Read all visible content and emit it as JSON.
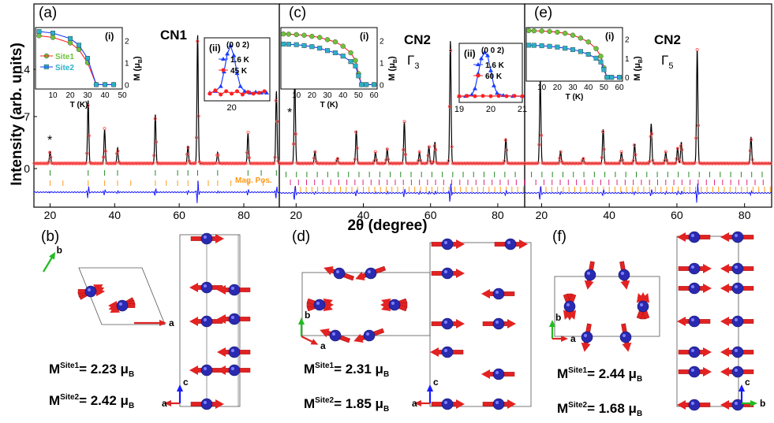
{
  "figure": {
    "ylabel": "Intensity (arb. units)",
    "xlabel": "2θ (degree)",
    "y_ticks": [
      "0",
      "7",
      "14"
    ]
  },
  "colors": {
    "obs": "#ff4d4d",
    "calc": "#000000",
    "diff": "#1a1aff",
    "nuc_ticks": "#228b22",
    "mag_ticks_1": "#e0218a",
    "mag_ticks_2": "#ff9a1a",
    "site1": "#6fc23a",
    "site2": "#2bb0c8",
    "arrow": "#e32222",
    "atom": "#2a2ab0"
  },
  "panels": {
    "a": {
      "label": "(a)",
      "sample": "CN1",
      "irrep": "",
      "mag_pos": "Mag. Pos.",
      "inset_i": "(i)",
      "inset_ii": "(ii)",
      "inset_ii_title": "(0 0 2)",
      "leg_site1": "Site1",
      "leg_site2": "Site2",
      "leg_t1": "1.6 K",
      "leg_t2": "45 K",
      "ylab_i": "M (μ",
      "ylab_i_sub": "B",
      "ylab_close": ")",
      "xlab_i": "T (K)",
      "star": "*"
    },
    "c": {
      "label": "(c)",
      "sample": "CN2",
      "irrep": "Γ",
      "irrep_sub": "3",
      "inset_i": "(i)",
      "inset_ii": "(ii)",
      "inset_ii_title": "(0 0 2)",
      "leg_t1": "1.6 K",
      "leg_t2": "60 K",
      "ylab_i": "M (μ",
      "ylab_i_sub": "B",
      "ylab_close": ")",
      "xlab_i": "T (K)",
      "star": "*"
    },
    "e": {
      "label": "(e)",
      "sample": "CN2",
      "irrep": "Γ",
      "irrep_sub": "5",
      "inset_i": "(i)",
      "ylab_i": "M (μ",
      "ylab_i_sub": "B",
      "ylab_close": ")",
      "xlab_i": "T (K)"
    },
    "b": {
      "label": "(b)",
      "m1": "2.23",
      "m2": "2.42"
    },
    "d": {
      "label": "(d)",
      "m1": "2.31",
      "m2": "1.85"
    },
    "f": {
      "label": "(f)",
      "m1": "2.44",
      "m2": "1.68"
    }
  },
  "moment_text": {
    "m": "M",
    "site1": "Site1",
    "site2": "Site2",
    "eq": "= ",
    "unit": "μ",
    "unit_sub": "B"
  },
  "axes_labels": {
    "a": "a",
    "b": "b",
    "c": "c"
  },
  "chart_data": [
    {
      "type": "line",
      "panel": "a",
      "title": "CN1",
      "xlabel": "2θ (degree)",
      "ylabel": "Intensity (arb. units)",
      "xlim": [
        15,
        91
      ],
      "ylim": [
        -3.5,
        21
      ],
      "x_ticks": [
        20,
        40,
        60,
        80
      ],
      "y_ticks": [
        0,
        7,
        14
      ],
      "peaks": [
        [
          20,
          1.6
        ],
        [
          31.8,
          8.5
        ],
        [
          36.9,
          4.6
        ],
        [
          40.9,
          2.1
        ],
        [
          52.6,
          6.6
        ],
        [
          62.7,
          2.4
        ],
        [
          65.7,
          17.4
        ],
        [
          71.9,
          1.5
        ],
        [
          81.3,
          4.1
        ],
        [
          90.1,
          9.8
        ]
      ],
      "background": 0.7,
      "nuclear_tick_positions": [
        20,
        31.8,
        36.9,
        40.9,
        52.6,
        59.5,
        62.7,
        65.7,
        71.9,
        81.3,
        85.4,
        90.1
      ],
      "magnetic_tick_positions": [
        20,
        24,
        31.8,
        36.9,
        40.9,
        45,
        52.6,
        56,
        59.5,
        62.7,
        65.7,
        69,
        71.9,
        76,
        81.3,
        86
      ]
    },
    {
      "type": "line",
      "panel": "c",
      "title": "CN2",
      "xlim": [
        15,
        88
      ],
      "x_ticks": [
        20,
        40,
        60,
        80
      ],
      "peaks": [
        [
          19.6,
          12
        ],
        [
          25.6,
          1.6
        ],
        [
          32.3,
          0.7
        ],
        [
          37.9,
          4.4
        ],
        [
          43.6,
          1.5
        ],
        [
          47.1,
          1.9
        ],
        [
          52.2,
          5.6
        ],
        [
          56.7,
          1.5
        ],
        [
          59.5,
          2.3
        ],
        [
          61.3,
          2.9
        ],
        [
          65.9,
          16.6
        ],
        [
          82.4,
          3.4
        ]
      ],
      "background": 0.7
    },
    {
      "type": "line",
      "panel": "e",
      "title": "CN2",
      "xlim": [
        15,
        88
      ],
      "x_ticks": [
        20,
        40,
        60,
        80
      ],
      "peaks": [
        [
          19.6,
          11.5
        ],
        [
          25.6,
          1.6
        ],
        [
          32.3,
          0.7
        ],
        [
          38.2,
          4.6
        ],
        [
          43.6,
          1.5
        ],
        [
          47.5,
          2.6
        ],
        [
          52.4,
          5.4
        ],
        [
          56.7,
          1.5
        ],
        [
          60.2,
          2.1
        ],
        [
          61.3,
          2.9
        ],
        [
          66,
          15.5
        ],
        [
          81.9,
          3.6
        ]
      ],
      "background": 0.7
    },
    {
      "type": "line",
      "panel": "a-i",
      "xlabel": "T (K)",
      "xlim": [
        0,
        50
      ],
      "ylim": [
        -0.2,
        2.6
      ],
      "x_ticks": [
        10,
        20,
        30,
        40,
        50
      ],
      "y_ticks": [
        0,
        1,
        2
      ],
      "series": [
        {
          "name": "Site1",
          "x": [
            2,
            10,
            20,
            25,
            30,
            35,
            40,
            45
          ],
          "y": [
            2.23,
            2.15,
            1.9,
            1.6,
            1.0,
            0,
            0,
            0
          ]
        },
        {
          "name": "Site2",
          "x": [
            2,
            10,
            20,
            25,
            30,
            35,
            40,
            45
          ],
          "y": [
            2.42,
            2.35,
            2.1,
            1.8,
            1.2,
            0,
            0,
            0
          ]
        }
      ]
    },
    {
      "type": "line",
      "panel": "a-ii",
      "title": "(0 0 2)",
      "xlim": [
        17.5,
        23.5
      ],
      "x_ticks": [
        20
      ],
      "series": [
        {
          "name": "1.6 K",
          "x": [
            18,
            18.5,
            19,
            19.3,
            19.6,
            19.9,
            20.2,
            20.5,
            20.8,
            21.2,
            21.7,
            22.2,
            22.7,
            23.2
          ],
          "y": [
            0.2,
            0.3,
            0.6,
            1.5,
            2.6,
            3.1,
            2.5,
            1.4,
            0.6,
            0.3,
            0.2,
            0.25,
            0.2,
            0.2
          ]
        },
        {
          "name": "45 K",
          "x": [
            18,
            18.5,
            19,
            19.5,
            20,
            20.5,
            21,
            21.5,
            22,
            22.5,
            23
          ],
          "y": [
            0.15,
            0.35,
            0.1,
            0.3,
            0.15,
            0.3,
            0.1,
            0.25,
            0.15,
            0.2,
            0.3
          ]
        }
      ]
    },
    {
      "type": "line",
      "panel": "c-i",
      "xlabel": "T (K)",
      "xlim": [
        0,
        62
      ],
      "ylim": [
        -0.2,
        2.6
      ],
      "x_ticks": [
        10,
        20,
        30,
        40,
        50,
        60
      ],
      "y_ticks": [
        0,
        1,
        2
      ],
      "series": [
        {
          "name": "Site1",
          "x": [
            1.6,
            5,
            10,
            15,
            20,
            25,
            30,
            35,
            40,
            45,
            48,
            50,
            52,
            55,
            60
          ],
          "y": [
            2.31,
            2.3,
            2.28,
            2.25,
            2.2,
            2.15,
            2.05,
            1.95,
            1.75,
            1.45,
            1.1,
            0.5,
            0,
            0,
            0
          ]
        },
        {
          "name": "Site2",
          "x": [
            1.6,
            5,
            10,
            15,
            20,
            25,
            30,
            35,
            40,
            45,
            48,
            50,
            52,
            55,
            60
          ],
          "y": [
            1.85,
            1.84,
            1.82,
            1.78,
            1.73,
            1.66,
            1.55,
            1.45,
            1.3,
            1.05,
            0.85,
            0.4,
            0,
            0,
            0
          ]
        }
      ]
    },
    {
      "type": "line",
      "panel": "c-ii",
      "title": "(0 0 2)",
      "xlim": [
        19,
        21
      ],
      "x_ticks": [
        19,
        20,
        21
      ],
      "series": [
        {
          "name": "1.6 K",
          "x": [
            19.0,
            19.2,
            19.4,
            19.5,
            19.6,
            19.7,
            19.8,
            19.9,
            20.0,
            20.1,
            20.2,
            20.4,
            20.7,
            21.0
          ],
          "y": [
            0.1,
            0.1,
            0.2,
            0.6,
            1.6,
            2.6,
            3.0,
            2.8,
            1.8,
            0.8,
            0.3,
            0.15,
            0.1,
            0.1
          ]
        },
        {
          "name": "60 K",
          "x": [
            19.0,
            19.25,
            19.5,
            19.75,
            20.0,
            20.25,
            20.5,
            20.75,
            21.0
          ],
          "y": [
            0.1,
            0.12,
            0.1,
            0.12,
            0.1,
            0.12,
            0.1,
            0.12,
            0.1
          ]
        }
      ]
    },
    {
      "type": "line",
      "panel": "e-i",
      "xlabel": "T (K)",
      "xlim": [
        0,
        62
      ],
      "ylim": [
        -0.2,
        2.6
      ],
      "x_ticks": [
        10,
        20,
        30,
        40,
        50,
        60
      ],
      "y_ticks": [
        0,
        1,
        2
      ],
      "series": [
        {
          "name": "Site1",
          "x": [
            1.6,
            5,
            10,
            15,
            20,
            25,
            30,
            35,
            40,
            45,
            48,
            50,
            52,
            55,
            60
          ],
          "y": [
            2.44,
            2.43,
            2.42,
            2.4,
            2.36,
            2.3,
            2.2,
            2.05,
            1.85,
            1.5,
            1.1,
            0.5,
            0,
            0,
            0
          ]
        },
        {
          "name": "Site2",
          "x": [
            1.6,
            5,
            10,
            15,
            20,
            25,
            30,
            35,
            40,
            45,
            48,
            50,
            52,
            55,
            60
          ],
          "y": [
            1.68,
            1.67,
            1.65,
            1.62,
            1.58,
            1.52,
            1.45,
            1.35,
            1.2,
            1.0,
            0.8,
            0.4,
            0,
            0,
            0
          ]
        }
      ]
    }
  ]
}
